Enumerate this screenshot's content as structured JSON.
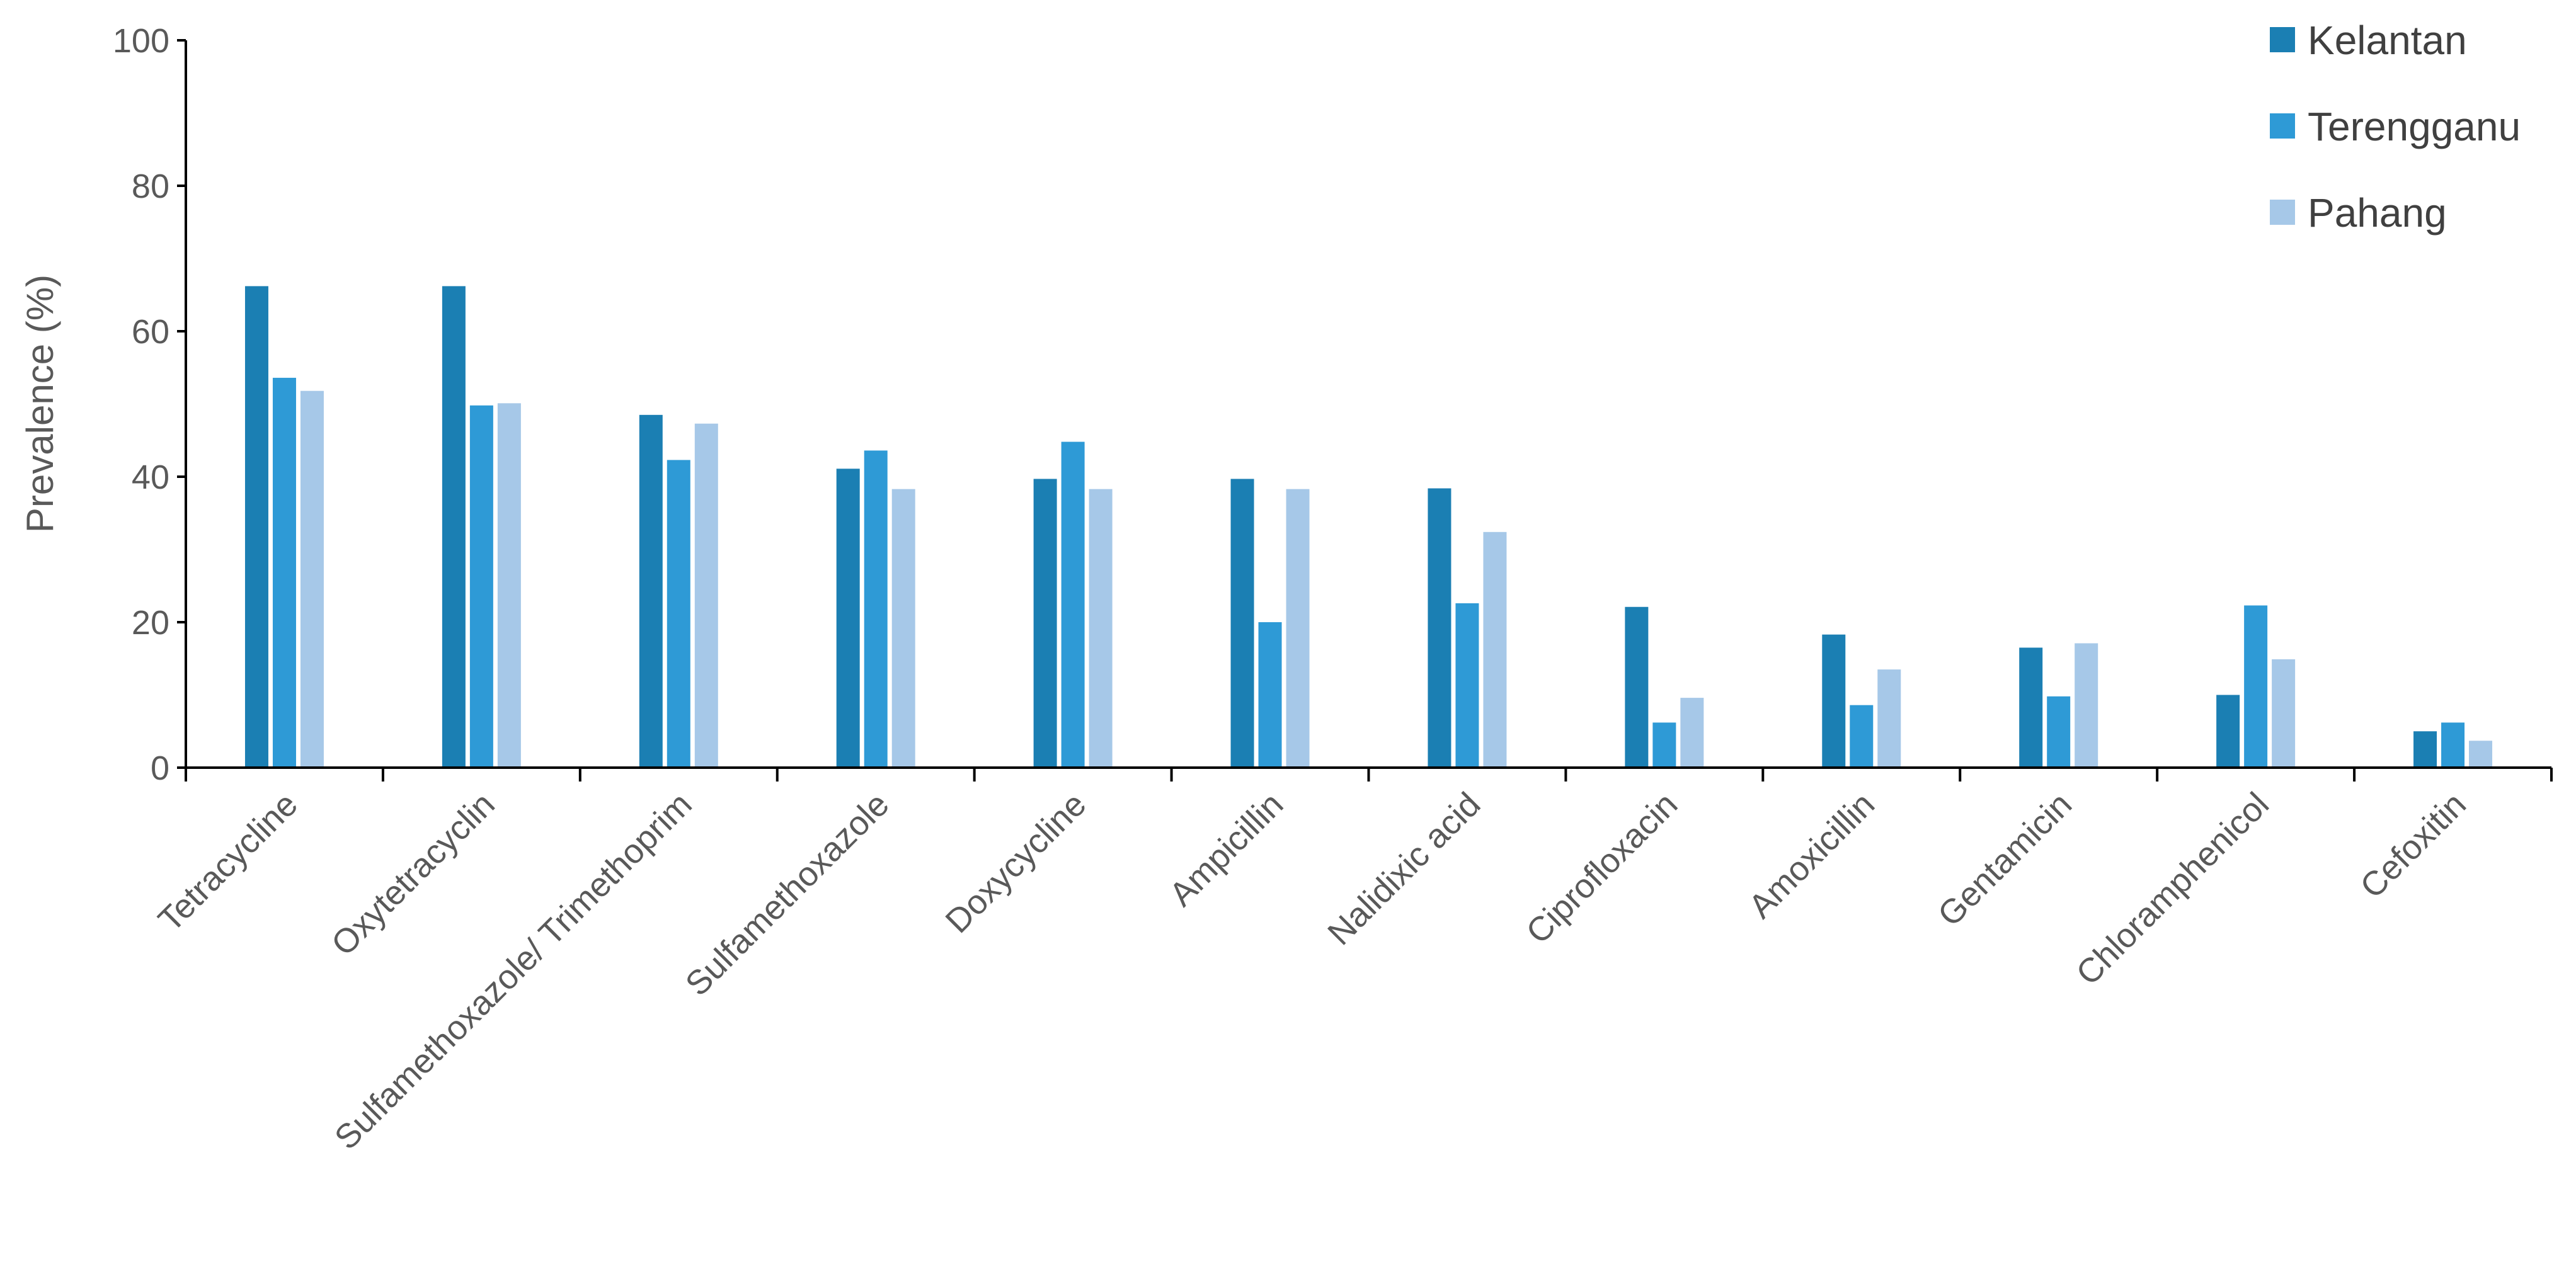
{
  "chart_data": {
    "type": "bar",
    "title": "",
    "xlabel": "",
    "ylabel": "Prevalence (%)",
    "ylim": [
      0,
      100
    ],
    "yticks": [
      0,
      20,
      40,
      60,
      80,
      100
    ],
    "grid": false,
    "legend_position": "top-right",
    "categories": [
      "Tetracycline",
      "Oxytetracyclin",
      "Sulfamethoxazole/ Trimethoprim",
      "Sulfamethoxazole",
      "Doxycycline",
      "Ampicillin",
      "Nalidixic acid",
      "Ciprofloxacin",
      "Amoxicillin",
      "Gentamicin",
      "Chloramphenicol",
      "Cefoxitin"
    ],
    "series": [
      {
        "name": "Kelantan",
        "color": "#1b7fb3",
        "values": [
          66.2,
          66.2,
          48.5,
          41.1,
          39.7,
          39.7,
          38.4,
          22.1,
          18.3,
          16.5,
          10.0,
          5.0
        ]
      },
      {
        "name": "Terengganu",
        "color": "#2e9ad6",
        "values": [
          53.6,
          49.8,
          42.3,
          43.6,
          44.8,
          20.0,
          22.6,
          6.2,
          8.6,
          9.8,
          22.3,
          6.2
        ]
      },
      {
        "name": "Pahang",
        "color": "#a6c8e8",
        "values": [
          51.8,
          50.1,
          47.3,
          38.3,
          38.3,
          38.3,
          32.4,
          9.6,
          13.5,
          17.1,
          14.9,
          3.7
        ]
      }
    ]
  }
}
